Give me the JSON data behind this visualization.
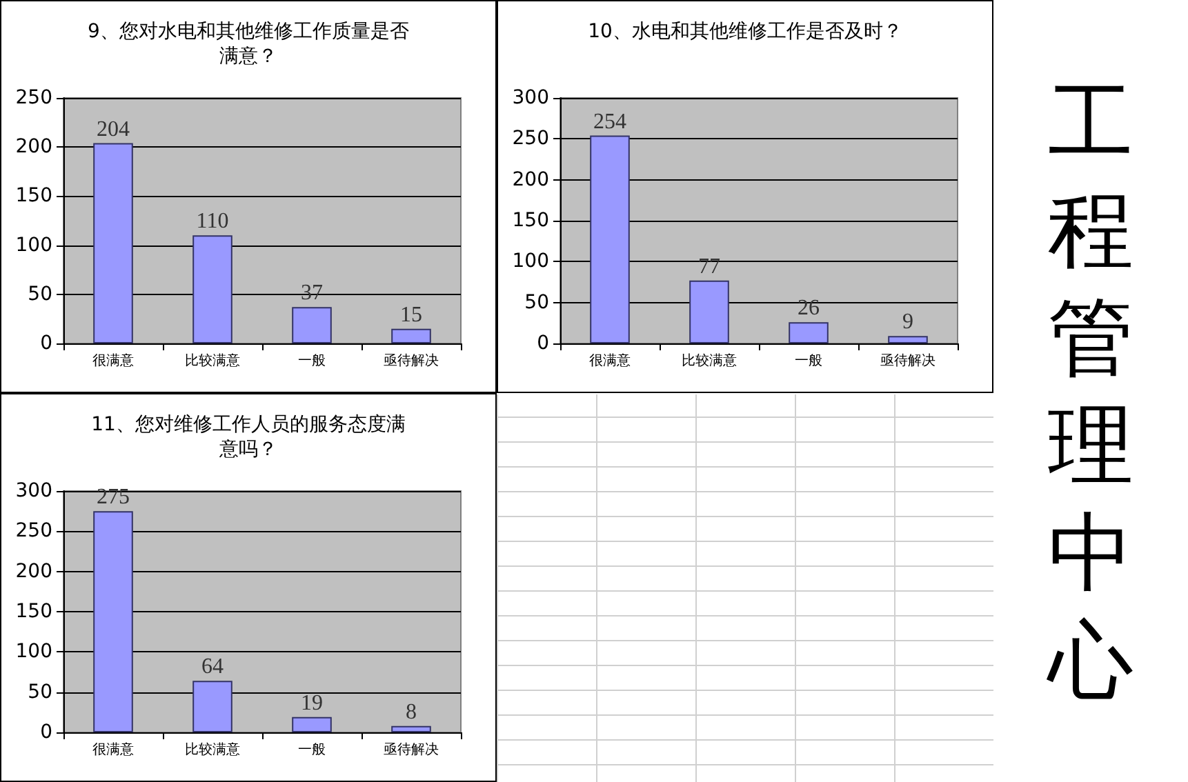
{
  "chart_data": [
    {
      "type": "bar",
      "title": "9、您对水电和其他维修工作质量是否满意？",
      "categories": [
        "很满意",
        "比较满意",
        "一般",
        "亟待解决"
      ],
      "values": [
        204,
        110,
        37,
        15
      ],
      "color": "#9999ff",
      "ylim": [
        0,
        250
      ],
      "yticks": [
        0,
        50,
        100,
        150,
        200,
        250
      ],
      "grid": "y",
      "data_labels": true
    },
    {
      "type": "bar",
      "title": "10、水电和其他维修工作是否及时？",
      "categories": [
        "很满意",
        "比较满意",
        "一般",
        "亟待解决"
      ],
      "values": [
        254,
        77,
        26,
        9
      ],
      "color": "#9999ff",
      "ylim": [
        0,
        300
      ],
      "yticks": [
        0,
        50,
        100,
        150,
        200,
        250,
        300
      ],
      "grid": "y",
      "data_labels": true
    },
    {
      "type": "bar",
      "title": "11、您对维修工作人员的服务态度满意吗？",
      "categories": [
        "很满意",
        "比较满意",
        "一般",
        "亟待解决"
      ],
      "values": [
        275,
        64,
        19,
        8
      ],
      "color": "#9999ff",
      "ylim": [
        0,
        300
      ],
      "yticks": [
        0,
        50,
        100,
        150,
        200,
        250,
        300
      ],
      "grid": "y",
      "data_labels": true
    },
    {
      "type": "other",
      "title": "工程管理中心"
    }
  ]
}
